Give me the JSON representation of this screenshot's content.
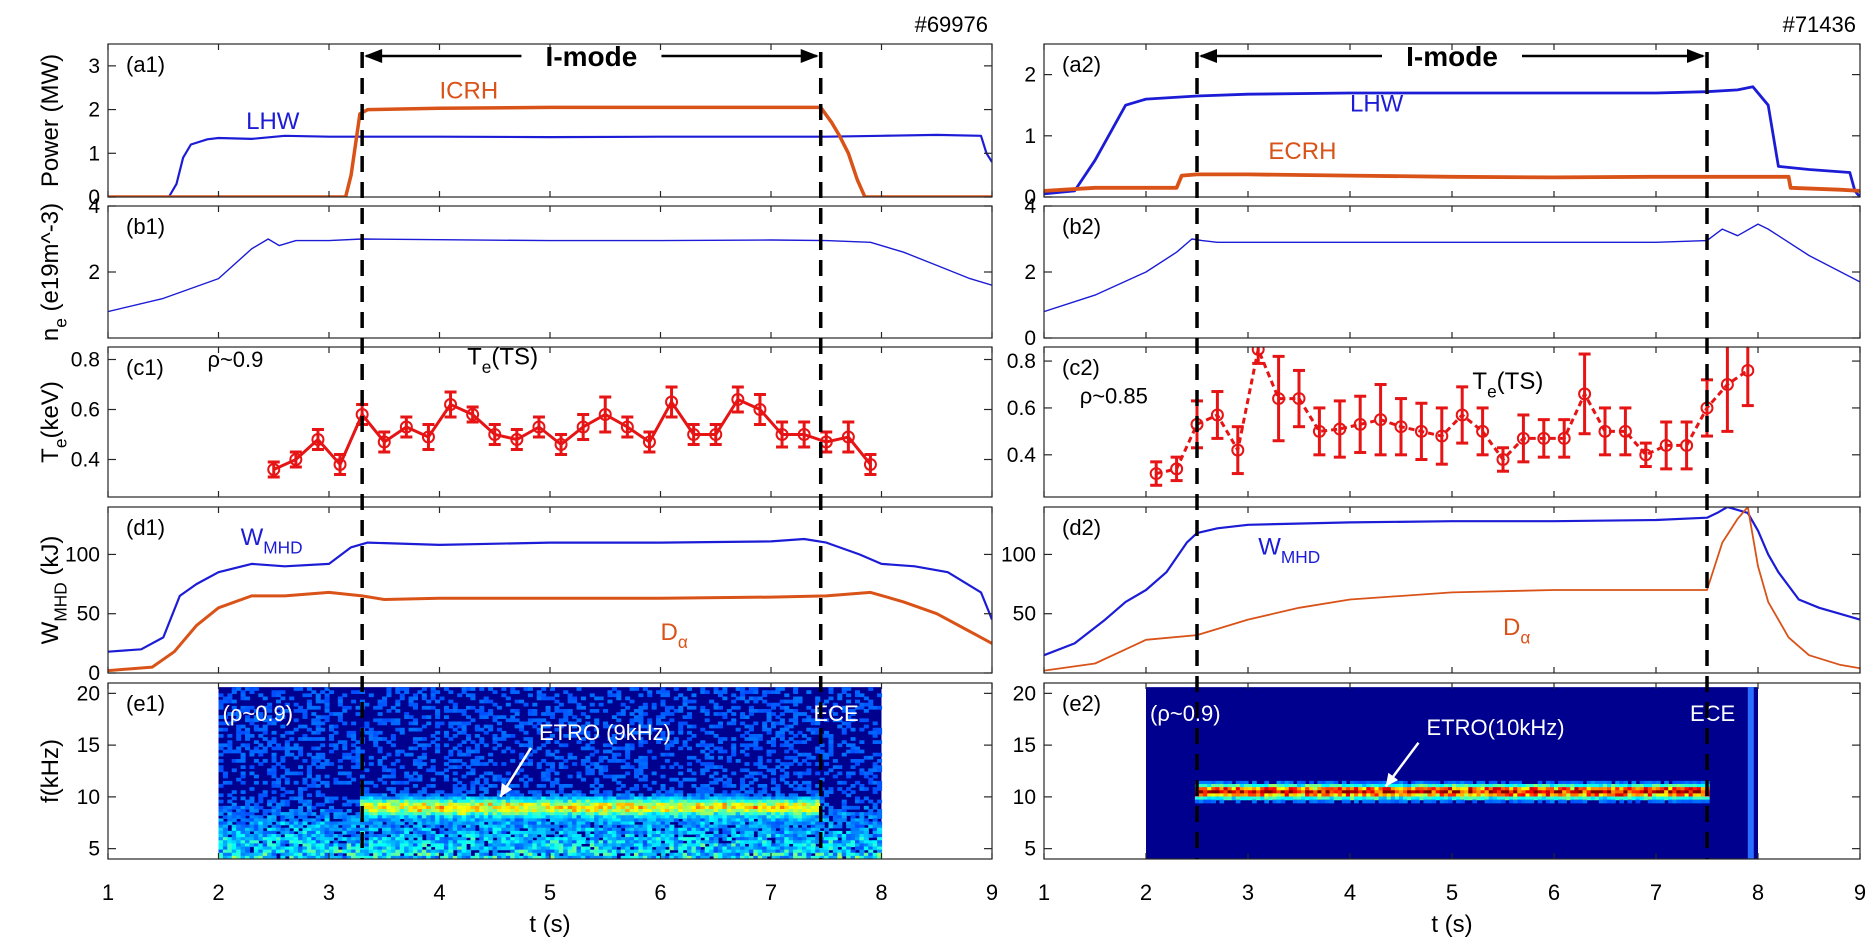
{
  "chart_data": [
    {
      "id": "left",
      "type": "line",
      "shot": "#69976",
      "xlabel": "t (s)",
      "xlim": [
        1,
        9
      ],
      "xticks": [
        1,
        2,
        3,
        4,
        5,
        6,
        7,
        8,
        9
      ],
      "imode": {
        "label": "I-mode",
        "t_start": 3.3,
        "t_end": 7.45
      },
      "panels": [
        {
          "tag": "(a1)",
          "ylabel": "Power (MW)",
          "ylim": [
            0,
            3.5
          ],
          "yticks": [
            0,
            1,
            2,
            3
          ],
          "series": [
            {
              "name": "LHW",
              "color": "#1c1cd6",
              "width": 2.2,
              "t": [
                1.0,
                1.55,
                1.62,
                1.68,
                1.75,
                1.9,
                2.0,
                2.3,
                2.6,
                3.0,
                3.3,
                4.0,
                5.0,
                6.0,
                7.0,
                7.5,
                8.0,
                8.5,
                8.9,
                8.95,
                9.0
              ],
              "v": [
                0,
                0,
                0.3,
                0.9,
                1.2,
                1.32,
                1.35,
                1.33,
                1.4,
                1.38,
                1.38,
                1.38,
                1.37,
                1.38,
                1.38,
                1.38,
                1.4,
                1.42,
                1.4,
                1.0,
                0.8
              ]
            },
            {
              "name": "ICRH",
              "color": "#d95319",
              "width": 3.5,
              "t": [
                1.0,
                3.15,
                3.2,
                3.28,
                3.35,
                4.0,
                5.0,
                6.0,
                7.0,
                7.45,
                7.55,
                7.62,
                7.7,
                7.78,
                7.85,
                9.0
              ],
              "v": [
                0,
                0,
                0.5,
                1.9,
                2.0,
                2.03,
                2.05,
                2.05,
                2.05,
                2.05,
                1.7,
                1.4,
                1.0,
                0.4,
                0,
                0
              ]
            }
          ],
          "labels": [
            {
              "text": "LHW",
              "t": 2.25,
              "v": 1.55,
              "color": "#1c1cd6"
            },
            {
              "text": "ICRH",
              "t": 4.0,
              "v": 2.25,
              "color": "#d95319"
            }
          ]
        },
        {
          "tag": "(b1)",
          "ylabel": "n_e (e19m^-3)",
          "ylim": [
            0,
            4
          ],
          "yticks": [
            2,
            4
          ],
          "series": [
            {
              "name": "ne",
              "color": "#1c1cd6",
              "width": 1.4,
              "t": [
                1.0,
                1.5,
                2.0,
                2.3,
                2.45,
                2.55,
                2.7,
                3.0,
                3.3,
                4.0,
                5.0,
                6.0,
                7.0,
                7.5,
                7.9,
                8.2,
                8.5,
                8.8,
                9.0
              ],
              "v": [
                0.8,
                1.2,
                1.8,
                2.7,
                3.0,
                2.8,
                2.95,
                2.95,
                3.0,
                2.98,
                2.95,
                2.95,
                2.97,
                2.95,
                2.9,
                2.6,
                2.2,
                1.8,
                1.6
              ]
            }
          ],
          "labels": []
        },
        {
          "tag": "(c1)",
          "ylabel": "T_e(keV)",
          "ylim": [
            0.25,
            0.85
          ],
          "yticks": [
            0.4,
            0.6,
            0.8
          ],
          "annot": {
            "rho": "ρ~0.9",
            "te": "T_e(TS)",
            "rho_t": 1.9,
            "rho_v": 0.77,
            "te_t": 4.25,
            "te_v": 0.78
          },
          "errorbars": {
            "color": "#e61414",
            "dash": false,
            "t": [
              2.5,
              2.7,
              2.9,
              3.1,
              3.3,
              3.5,
              3.7,
              3.9,
              4.1,
              4.3,
              4.5,
              4.7,
              4.9,
              5.1,
              5.3,
              5.5,
              5.7,
              5.9,
              6.1,
              6.3,
              6.5,
              6.7,
              6.9,
              7.1,
              7.3,
              7.5,
              7.7,
              7.9
            ],
            "v": [
              0.36,
              0.4,
              0.48,
              0.38,
              0.58,
              0.47,
              0.53,
              0.49,
              0.62,
              0.58,
              0.5,
              0.48,
              0.53,
              0.46,
              0.53,
              0.58,
              0.53,
              0.47,
              0.63,
              0.5,
              0.5,
              0.64,
              0.6,
              0.5,
              0.5,
              0.47,
              0.49,
              0.38
            ],
            "err": [
              0.03,
              0.03,
              0.04,
              0.04,
              0.04,
              0.04,
              0.04,
              0.05,
              0.05,
              0.03,
              0.04,
              0.04,
              0.04,
              0.04,
              0.05,
              0.07,
              0.04,
              0.04,
              0.06,
              0.04,
              0.04,
              0.05,
              0.06,
              0.05,
              0.05,
              0.04,
              0.06,
              0.04
            ]
          }
        },
        {
          "tag": "(d1)",
          "ylabel": "W_MHD (kJ)",
          "ylim": [
            0,
            140
          ],
          "yticks": [
            0,
            50,
            100
          ],
          "series": [
            {
              "name": "WMHD",
              "color": "#1c1cd6",
              "width": 2.2,
              "t": [
                1.0,
                1.3,
                1.5,
                1.65,
                1.8,
                2.0,
                2.3,
                2.6,
                3.0,
                3.2,
                3.35,
                4.0,
                5.0,
                6.0,
                7.0,
                7.3,
                7.5,
                7.8,
                8.0,
                8.3,
                8.6,
                8.9,
                9.0
              ],
              "v": [
                18,
                20,
                30,
                65,
                75,
                85,
                92,
                90,
                92,
                106,
                110,
                108,
                110,
                110,
                111,
                113,
                110,
                100,
                92,
                90,
                85,
                68,
                45
              ]
            },
            {
              "name": "Dalpha",
              "color": "#d95319",
              "width": 3.0,
              "t": [
                1.0,
                1.4,
                1.6,
                1.8,
                2.0,
                2.3,
                2.6,
                3.0,
                3.3,
                3.5,
                4.0,
                5.0,
                6.0,
                7.0,
                7.5,
                7.9,
                8.2,
                8.5,
                8.8,
                9.0
              ],
              "v": [
                2,
                5,
                18,
                40,
                55,
                65,
                65,
                68,
                65,
                62,
                63,
                63,
                63,
                64,
                65,
                68,
                60,
                50,
                35,
                25
              ]
            }
          ],
          "labels": [
            {
              "text": "W_MHD",
              "t": 2.2,
              "v": 108,
              "color": "#1c1cd6"
            },
            {
              "text": "D_α",
              "t": 6.0,
              "v": 28,
              "color": "#d95319"
            }
          ]
        },
        {
          "tag": "(e1)",
          "ylabel": "f(kHz)",
          "ylim": [
            4,
            21
          ],
          "yticks": [
            5,
            10,
            15,
            20
          ],
          "spectrogram": {
            "t0": 2.0,
            "t1": 8.0,
            "f0": 4,
            "f1": 20,
            "mode_f": 9,
            "mode_t0": 3.3,
            "mode_t1": 7.45,
            "strength": 0.55
          },
          "annot": {
            "rho": "(ρ~0.9)",
            "ece": "ECE",
            "etro": "ETRO (9kHz)",
            "etro_t": 4.9,
            "etro_v": 15.5,
            "arrow_t": 4.55,
            "arrow_v": 10.0
          }
        }
      ]
    },
    {
      "id": "right",
      "type": "line",
      "shot": "#71436",
      "xlabel": "t (s)",
      "xlim": [
        1,
        9
      ],
      "xticks": [
        1,
        2,
        3,
        4,
        5,
        6,
        7,
        8,
        9
      ],
      "imode": {
        "label": "I-mode",
        "t_start": 2.5,
        "t_end": 7.5
      },
      "panels": [
        {
          "tag": "(a2)",
          "ylabel": "",
          "ylim": [
            0,
            2.5
          ],
          "yticks": [
            0,
            1,
            2
          ],
          "series": [
            {
              "name": "LHW",
              "color": "#1c1cd6",
              "width": 2.8,
              "t": [
                1.0,
                1.3,
                1.5,
                1.7,
                1.8,
                2.0,
                2.5,
                3.0,
                4.0,
                5.0,
                6.0,
                7.0,
                7.5,
                7.8,
                7.95,
                8.1,
                8.2,
                8.5,
                8.9,
                8.95,
                9.0
              ],
              "v": [
                0.05,
                0.1,
                0.6,
                1.2,
                1.5,
                1.6,
                1.65,
                1.68,
                1.7,
                1.7,
                1.7,
                1.7,
                1.72,
                1.75,
                1.8,
                1.5,
                0.5,
                0.45,
                0.4,
                0.1,
                0
              ]
            },
            {
              "name": "ECRH",
              "color": "#d95319",
              "width": 3.8,
              "t": [
                1.0,
                1.5,
                2.3,
                2.35,
                2.5,
                3.0,
                4.0,
                5.0,
                6.0,
                7.0,
                7.5,
                8.3,
                8.32,
                8.8,
                9.0
              ],
              "v": [
                0.1,
                0.15,
                0.15,
                0.35,
                0.37,
                0.37,
                0.35,
                0.33,
                0.32,
                0.33,
                0.33,
                0.33,
                0.15,
                0.12,
                0.1
              ]
            }
          ],
          "labels": [
            {
              "text": "LHW",
              "t": 4.0,
              "v": 1.4,
              "color": "#1c1cd6"
            },
            {
              "text": "ECRH",
              "t": 3.2,
              "v": 0.62,
              "color": "#d95319"
            }
          ]
        },
        {
          "tag": "(b2)",
          "ylabel": "",
          "ylim": [
            0,
            4
          ],
          "yticks": [
            0,
            2,
            4
          ],
          "series": [
            {
              "name": "ne",
              "color": "#1c1cd6",
              "width": 1.4,
              "t": [
                1.0,
                1.5,
                2.0,
                2.3,
                2.45,
                2.55,
                2.7,
                3.0,
                4.0,
                5.0,
                6.0,
                7.0,
                7.5,
                7.65,
                7.8,
                8.0,
                8.1,
                8.5,
                9.0
              ],
              "v": [
                0.8,
                1.3,
                2.0,
                2.6,
                3.0,
                2.95,
                2.9,
                2.9,
                2.9,
                2.9,
                2.9,
                2.9,
                2.95,
                3.3,
                3.1,
                3.45,
                3.3,
                2.5,
                1.7
              ]
            }
          ],
          "labels": []
        },
        {
          "tag": "(c2)",
          "ylabel": "",
          "ylim": [
            0.22,
            0.86
          ],
          "yticks": [
            0.4,
            0.6,
            0.8
          ],
          "annot": {
            "rho": "ρ~0.85",
            "te": "T_e(TS)",
            "rho_t": 1.35,
            "rho_v": 0.62,
            "te_t": 5.2,
            "te_v": 0.68
          },
          "errorbars": {
            "color": "#e61414",
            "dash": true,
            "t": [
              2.1,
              2.3,
              2.5,
              2.7,
              2.9,
              3.1,
              3.3,
              3.5,
              3.7,
              3.9,
              4.1,
              4.3,
              4.5,
              4.7,
              4.9,
              5.1,
              5.3,
              5.5,
              5.7,
              5.9,
              6.1,
              6.3,
              6.5,
              6.7,
              6.9,
              7.1,
              7.3,
              7.5,
              7.7,
              7.9
            ],
            "v": [
              0.32,
              0.34,
              0.53,
              0.57,
              0.42,
              0.85,
              0.64,
              0.64,
              0.5,
              0.51,
              0.53,
              0.55,
              0.52,
              0.5,
              0.48,
              0.57,
              0.5,
              0.38,
              0.47,
              0.47,
              0.47,
              0.66,
              0.5,
              0.5,
              0.4,
              0.44,
              0.44,
              0.6,
              0.7,
              0.76
            ],
            "err": [
              0.05,
              0.05,
              0.1,
              0.1,
              0.1,
              0.06,
              0.18,
              0.12,
              0.1,
              0.12,
              0.12,
              0.15,
              0.12,
              0.12,
              0.12,
              0.12,
              0.1,
              0.05,
              0.1,
              0.08,
              0.08,
              0.17,
              0.1,
              0.1,
              0.05,
              0.1,
              0.1,
              0.12,
              0.2,
              0.15
            ]
          }
        },
        {
          "tag": "(d2)",
          "ylabel": "",
          "ylim": [
            0,
            140
          ],
          "yticks": [
            50,
            100
          ],
          "series": [
            {
              "name": "WMHD",
              "color": "#1c1cd6",
              "width": 2.2,
              "t": [
                1.0,
                1.3,
                1.6,
                1.8,
                2.0,
                2.2,
                2.4,
                2.5,
                2.7,
                3.0,
                4.0,
                5.0,
                6.0,
                7.0,
                7.5,
                7.6,
                7.7,
                7.9,
                8.0,
                8.1,
                8.2,
                8.4,
                8.6,
                8.8,
                9.0
              ],
              "v": [
                15,
                25,
                45,
                60,
                70,
                85,
                110,
                118,
                122,
                125,
                127,
                128,
                128,
                129,
                131,
                135,
                140,
                135,
                120,
                100,
                85,
                62,
                55,
                50,
                45
              ]
            },
            {
              "name": "Dalpha",
              "color": "#d95319",
              "width": 1.8,
              "t": [
                1.0,
                1.5,
                1.8,
                2.0,
                2.5,
                3.0,
                3.5,
                4.0,
                5.0,
                6.0,
                7.0,
                7.5,
                7.65,
                7.8,
                7.9,
                8.0,
                8.1,
                8.3,
                8.5,
                8.8,
                9.0
              ],
              "v": [
                2,
                8,
                20,
                28,
                32,
                45,
                55,
                62,
                68,
                70,
                70,
                70,
                110,
                130,
                140,
                90,
                60,
                30,
                15,
                7,
                4
              ]
            }
          ],
          "labels": [
            {
              "text": "W_MHD",
              "t": 3.1,
              "v": 100,
              "color": "#1c1cd6"
            },
            {
              "text": "D_α",
              "t": 5.5,
              "v": 32,
              "color": "#d95319"
            }
          ]
        },
        {
          "tag": "(e2)",
          "ylabel": "",
          "ylim": [
            4,
            21
          ],
          "yticks": [
            5,
            10,
            15,
            20
          ],
          "spectrogram": {
            "t0": 2.0,
            "t1": 8.0,
            "f0": 4,
            "f1": 20,
            "mode_f": 10.5,
            "mode_t0": 2.5,
            "mode_t1": 7.5,
            "strength": 1.0
          },
          "annot": {
            "rho": "(ρ~0.9)",
            "ece": "ECE",
            "etro": "ETRO(10kHz)",
            "etro_t": 4.75,
            "etro_v": 16.0,
            "arrow_t": 4.35,
            "arrow_v": 11.0
          }
        }
      ]
    }
  ]
}
